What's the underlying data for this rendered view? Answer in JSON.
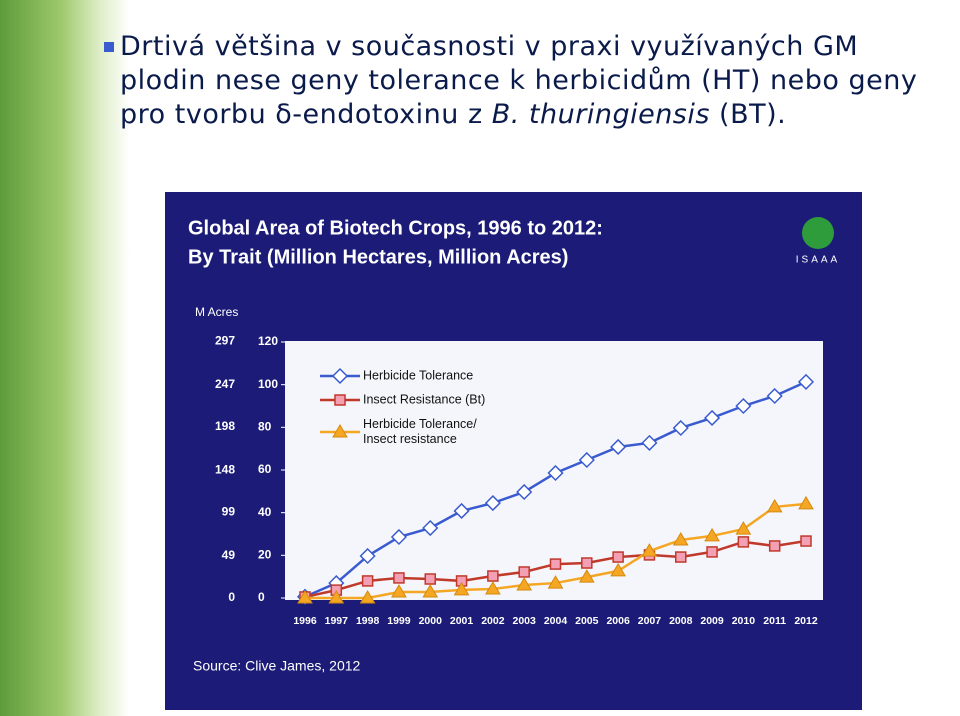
{
  "slide": {
    "bullet": [
      "Drtivá většina v současnosti v praxi využívaných GM plodin nese geny tolerance k herbicidům (HT) nebo geny pro tvorbu δ-endotoxinu z ",
      "B. thuringiensis",
      " (BT)."
    ]
  },
  "chart_data": {
    "type": "line",
    "title": "Global Area of Biotech Crops, 1996 to 2012:",
    "subtitle": "By Trait (Million Hectares, Million Acres)",
    "logo": "ISAAA",
    "y2label": "M Acres",
    "source": "Source: Clive James, 2012",
    "categories": [
      "1996",
      "1997",
      "1998",
      "1999",
      "2000",
      "2001",
      "2002",
      "2003",
      "2004",
      "2005",
      "2006",
      "2007",
      "2008",
      "2009",
      "2010",
      "2011",
      "2012"
    ],
    "ylim": [
      0,
      120
    ],
    "yticks": [
      0,
      20,
      40,
      60,
      80,
      100,
      120
    ],
    "y2lim": [
      0,
      296.5
    ],
    "y2ticks": [
      0,
      49,
      99,
      148,
      198,
      247,
      297
    ],
    "legend": "upper left",
    "series": [
      {
        "name": "Herbicide Tolerance",
        "color": "#3a5bd0",
        "marker": "diamond",
        "values": [
          0.6,
          7,
          19.7,
          28.6,
          32.8,
          40.8,
          44.5,
          49.7,
          58.6,
          64.7,
          70.8,
          72.7,
          79.7,
          84.4,
          90,
          94.7,
          101.3
        ]
      },
      {
        "name": "Insect Resistance (Bt)",
        "color": "#c0392b",
        "marker": "square",
        "values": [
          0.5,
          3.7,
          8,
          9.4,
          8.9,
          8,
          10.3,
          12.2,
          15.9,
          16.4,
          19.2,
          20.2,
          19.2,
          21.6,
          26.3,
          24.4,
          26.7
        ]
      },
      {
        "name": "Herbicide Tolerance/ Insect resistance",
        "color": "#f5a623",
        "marker": "triangle",
        "values": [
          0,
          0,
          0,
          2.8,
          2.8,
          3.8,
          4.2,
          6.1,
          7,
          9.8,
          12.7,
          22,
          27.2,
          29.1,
          32.3,
          42.7,
          44.1
        ]
      }
    ]
  }
}
